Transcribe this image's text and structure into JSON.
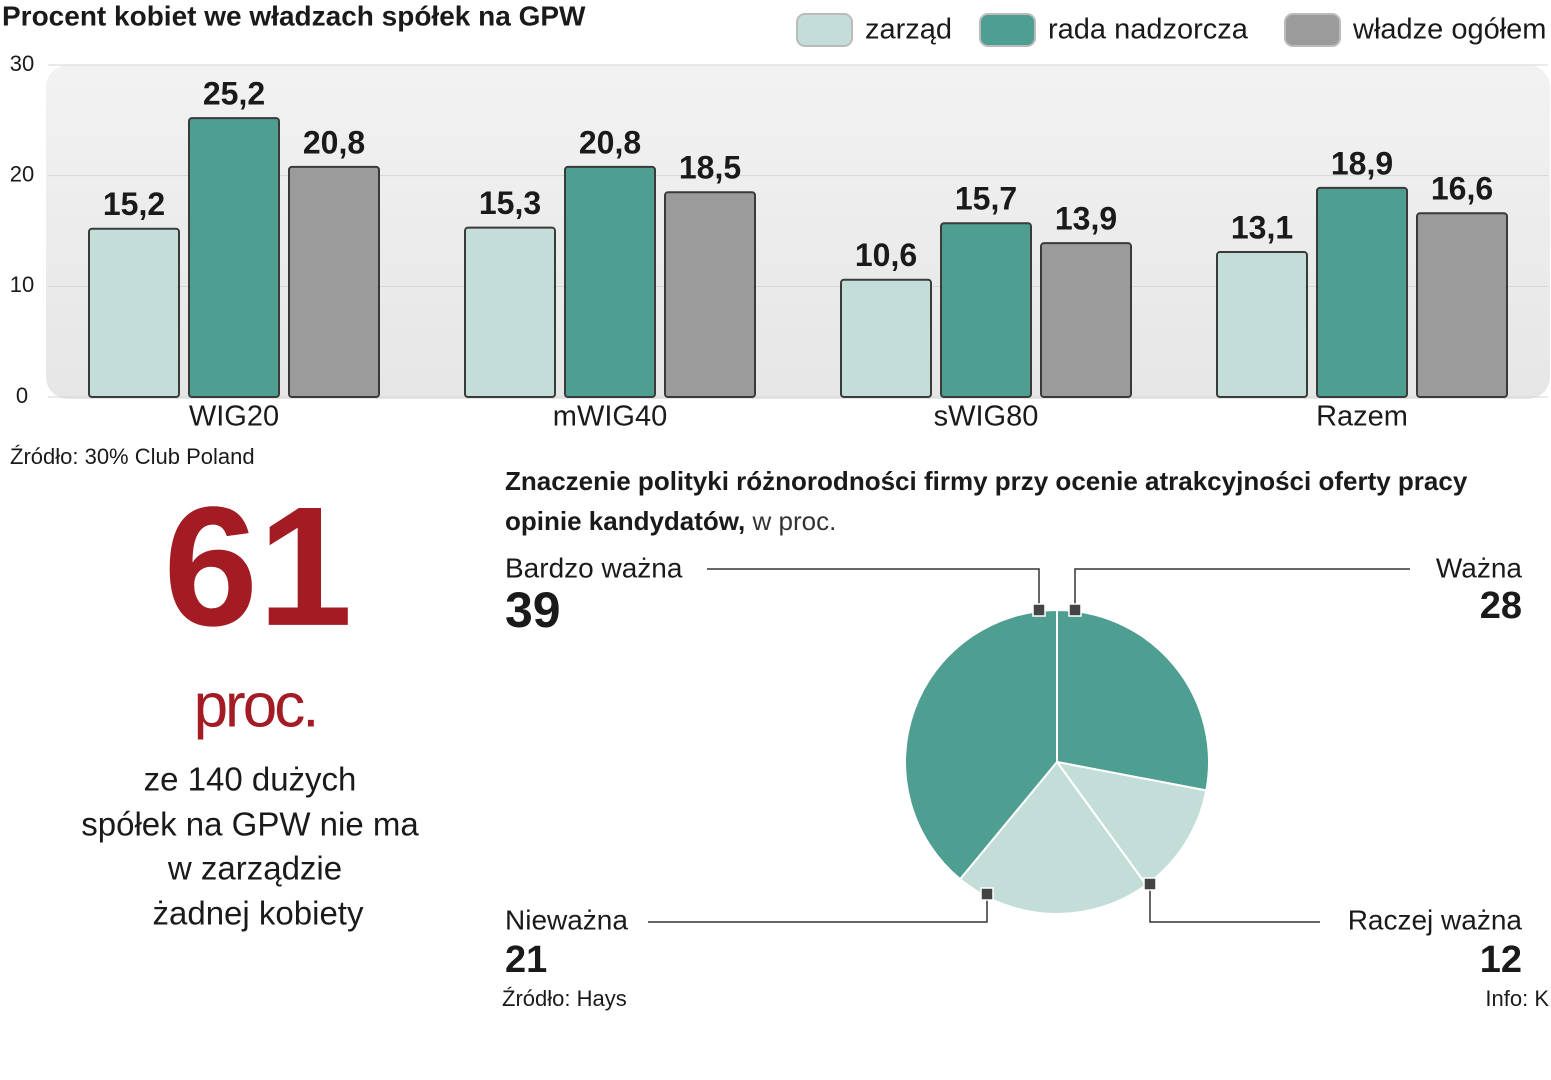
{
  "chart_data": [
    {
      "type": "bar",
      "title": "Procent kobiet we władzach spółek na GPW",
      "categories": [
        "WIG20",
        "mWIG40",
        "sWIG80",
        "Razem"
      ],
      "series": [
        {
          "name": "zarząd",
          "color": "#c3ddd8",
          "values": [
            15.2,
            15.3,
            10.6,
            13.1
          ],
          "value_labels": [
            "15,2",
            "15,3",
            "10,6",
            "13,1"
          ]
        },
        {
          "name": "rada nadzorcza",
          "color": "#4f9e92",
          "values": [
            25.2,
            20.8,
            15.7,
            18.9
          ],
          "value_labels": [
            "25,2",
            "20,8",
            "15,7",
            "18,9"
          ]
        },
        {
          "name": "władze ogółem",
          "color": "#9b9b9b",
          "values": [
            20.8,
            18.5,
            13.9,
            16.6
          ],
          "value_labels": [
            "20,8",
            "18,5",
            "13,9",
            "16,6"
          ]
        }
      ],
      "ylim": [
        0,
        30
      ],
      "yticks": [
        0,
        10,
        20,
        30
      ],
      "grid": true,
      "legend": "top-right",
      "source": "Źródło: 30% Club Poland"
    },
    {
      "type": "pie",
      "title": [
        "Znaczenie polityki różnorodności firmy  przy ocenie atrakcyjności oferty pracy",
        "opinie kandydatów,"
      ],
      "unit": "w proc.",
      "categories": [
        "Ważna",
        "Raczej ważna",
        "Nieważna",
        "Bardzo ważna"
      ],
      "values": [
        28,
        12,
        21,
        39
      ],
      "colors": [
        "#4f9e92",
        "#c3ddd8",
        "#c3ddd8",
        "#4f9e92"
      ],
      "source": "Źródło:  Hays"
    }
  ],
  "callout": {
    "number": "61",
    "unit": "proc.",
    "lines": [
      "ze 140 dużych",
      "spółek na GPW nie ma",
      "w zarządzie",
      "żadnej kobiety"
    ]
  },
  "credit": "Info: K"
}
